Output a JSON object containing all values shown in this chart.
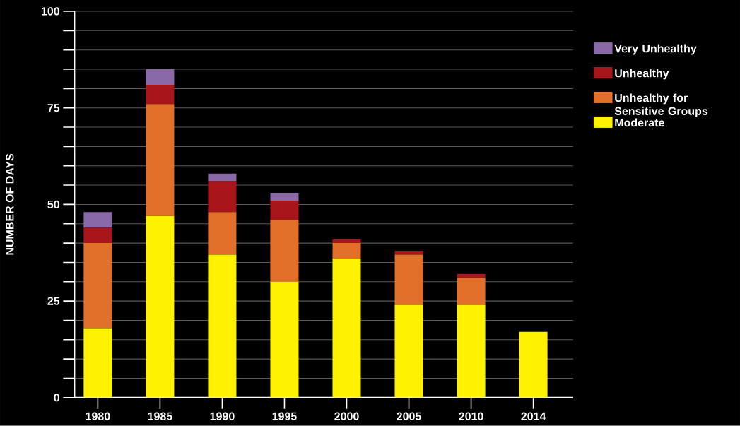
{
  "chart_data": {
    "type": "bar",
    "stacked": true,
    "ylabel": "NUMBER OF DAYS",
    "categories": [
      "1980",
      "1985",
      "1990",
      "1995",
      "2000",
      "2005",
      "2010",
      "2014"
    ],
    "series": [
      {
        "name": "Moderate",
        "color": "#fff200",
        "values": [
          18,
          47,
          37,
          30,
          36,
          24,
          24,
          17
        ]
      },
      {
        "name": "Unhealthy for Sensitive Groups",
        "color": "#e2702a",
        "values": [
          22,
          29,
          11,
          16,
          4,
          13,
          7,
          0
        ]
      },
      {
        "name": "Unhealthy",
        "color": "#a8161c",
        "values": [
          4,
          5,
          8,
          5,
          1,
          1,
          1,
          0
        ]
      },
      {
        "name": "Very Unhealthy",
        "color": "#8a69a8",
        "values": [
          4,
          4,
          2,
          2,
          0,
          0,
          0,
          0
        ]
      }
    ],
    "ylim": [
      0,
      100
    ],
    "yticks": [
      0,
      {
        "value": 5,
        "label": null
      },
      {
        "value": 10,
        "label": null
      },
      {
        "value": 15,
        "label": null
      },
      {
        "value": 20,
        "label": null
      },
      25,
      {
        "value": 30,
        "label": null
      },
      {
        "value": 35,
        "label": null
      },
      {
        "value": 40,
        "label": null
      },
      {
        "value": 45,
        "label": null
      },
      50,
      {
        "value": 55,
        "label": null
      },
      {
        "value": 60,
        "label": null
      },
      {
        "value": 65,
        "label": null
      },
      {
        "value": 70,
        "label": null
      },
      75,
      {
        "value": 80,
        "label": null
      },
      {
        "value": 85,
        "label": null
      },
      {
        "value": 90,
        "label": null
      },
      {
        "value": 95,
        "label": null
      },
      100
    ],
    "grid": "y",
    "legend": "right"
  }
}
